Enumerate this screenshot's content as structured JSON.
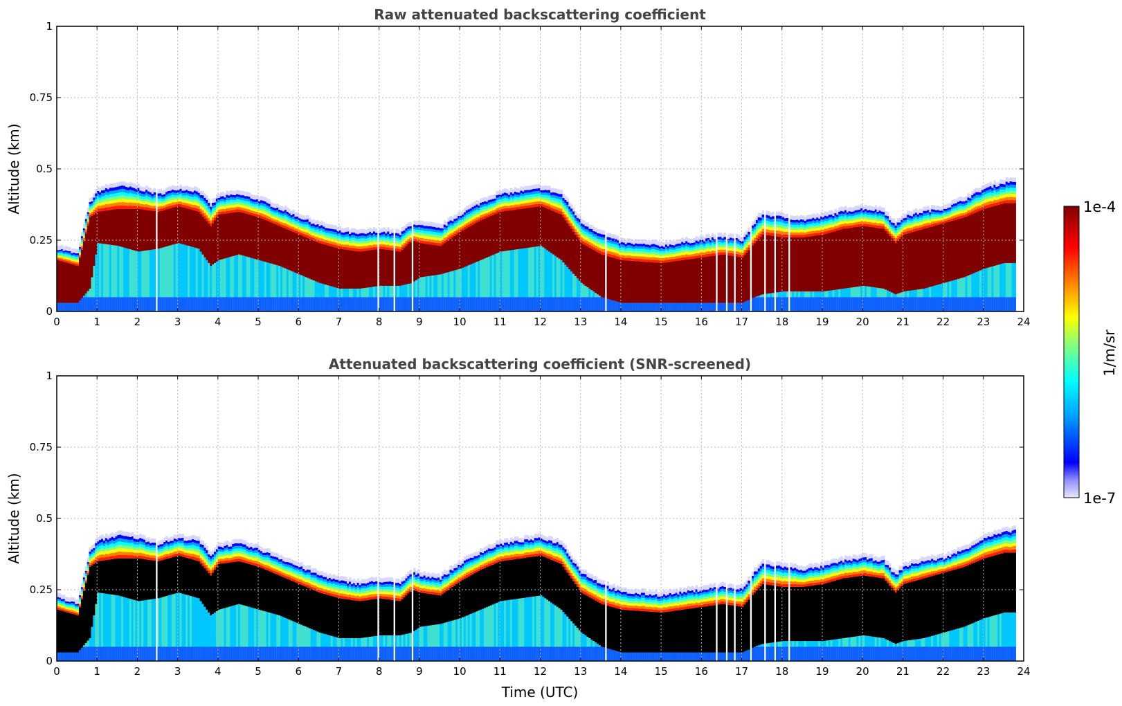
{
  "chart_data": [
    {
      "type": "heatmap",
      "title": "Raw attenuated backscattering coefficient",
      "xlabel": "",
      "ylabel": "Altitude (km)",
      "xlim": [
        0,
        24
      ],
      "ylim": [
        0,
        1
      ],
      "x_ticks": [
        "0",
        "1",
        "2",
        "3",
        "4",
        "5",
        "6",
        "7",
        "8",
        "9",
        "10",
        "11",
        "12",
        "13",
        "14",
        "15",
        "16",
        "17",
        "18",
        "19",
        "20",
        "21",
        "22",
        "23",
        "24"
      ],
      "y_ticks": [
        "0",
        "0.25",
        "0.5",
        "0.75",
        "1"
      ],
      "grid": true,
      "screened": false,
      "data_gaps_hours": [
        2.45,
        7.95,
        8.35,
        8.8,
        13.6,
        16.35,
        16.6,
        16.8,
        17.2,
        17.55,
        17.8,
        18.15
      ],
      "layer_profile": {
        "time_utc": [
          0.0,
          0.5,
          0.8,
          1.0,
          1.5,
          2.0,
          2.5,
          3.0,
          3.5,
          3.8,
          4.0,
          4.5,
          5.0,
          5.5,
          6.0,
          6.5,
          7.0,
          7.5,
          8.0,
          8.5,
          8.8,
          9.0,
          9.5,
          10.0,
          10.5,
          11.0,
          11.5,
          12.0,
          12.5,
          13.0,
          13.5,
          14.0,
          15.0,
          16.0,
          16.5,
          17.0,
          17.3,
          17.5,
          18.0,
          18.5,
          19.0,
          19.5,
          20.0,
          20.5,
          20.8,
          21.0,
          21.5,
          22.0,
          22.5,
          23.0,
          23.5,
          23.8
        ],
        "top_km": [
          0.22,
          0.2,
          0.38,
          0.42,
          0.44,
          0.43,
          0.41,
          0.43,
          0.42,
          0.37,
          0.4,
          0.41,
          0.39,
          0.36,
          0.33,
          0.3,
          0.28,
          0.27,
          0.28,
          0.27,
          0.31,
          0.3,
          0.29,
          0.34,
          0.38,
          0.41,
          0.42,
          0.43,
          0.41,
          0.31,
          0.27,
          0.24,
          0.23,
          0.25,
          0.26,
          0.25,
          0.31,
          0.34,
          0.33,
          0.32,
          0.33,
          0.35,
          0.36,
          0.35,
          0.3,
          0.33,
          0.35,
          0.36,
          0.39,
          0.43,
          0.45,
          0.46
        ],
        "core_top_km": [
          0.18,
          0.16,
          0.33,
          0.35,
          0.36,
          0.36,
          0.35,
          0.37,
          0.35,
          0.3,
          0.34,
          0.35,
          0.33,
          0.3,
          0.27,
          0.24,
          0.22,
          0.21,
          0.22,
          0.21,
          0.25,
          0.24,
          0.23,
          0.28,
          0.32,
          0.35,
          0.36,
          0.37,
          0.34,
          0.24,
          0.2,
          0.18,
          0.17,
          0.19,
          0.2,
          0.19,
          0.24,
          0.27,
          0.26,
          0.26,
          0.27,
          0.29,
          0.3,
          0.29,
          0.24,
          0.27,
          0.29,
          0.31,
          0.33,
          0.36,
          0.38,
          0.38
        ],
        "core_base_km": [
          0.03,
          0.03,
          0.08,
          0.24,
          0.23,
          0.21,
          0.22,
          0.24,
          0.22,
          0.16,
          0.18,
          0.2,
          0.18,
          0.16,
          0.13,
          0.1,
          0.08,
          0.08,
          0.09,
          0.09,
          0.1,
          0.12,
          0.13,
          0.15,
          0.18,
          0.21,
          0.22,
          0.23,
          0.18,
          0.1,
          0.05,
          0.03,
          0.03,
          0.03,
          0.03,
          0.03,
          0.05,
          0.06,
          0.07,
          0.07,
          0.07,
          0.08,
          0.09,
          0.08,
          0.06,
          0.07,
          0.08,
          0.1,
          0.12,
          0.15,
          0.17,
          0.17
        ]
      }
    },
    {
      "type": "heatmap",
      "title": "Attenuated backscattering coefficient (SNR-screened)",
      "xlabel": "Time (UTC)",
      "ylabel": "Altitude (km)",
      "xlim": [
        0,
        24
      ],
      "ylim": [
        0,
        1
      ],
      "x_ticks": [
        "0",
        "1",
        "2",
        "3",
        "4",
        "5",
        "6",
        "7",
        "8",
        "9",
        "10",
        "11",
        "12",
        "13",
        "14",
        "15",
        "16",
        "17",
        "18",
        "19",
        "20",
        "21",
        "22",
        "23",
        "24"
      ],
      "y_ticks": [
        "0",
        "0.25",
        "0.5",
        "0.75",
        "1"
      ],
      "grid": true,
      "screened": true,
      "screened_core_color": "#000000",
      "data_gaps_hours": [
        2.45,
        7.95,
        8.35,
        8.8,
        13.6,
        16.35,
        16.6,
        16.8,
        17.2,
        17.55,
        17.8,
        18.15
      ]
    }
  ],
  "colorbar": {
    "label": "1/m/sr",
    "max_label": "1e-4",
    "min_label": "1e-7",
    "colormap": [
      "#e8e8ff",
      "#0000ff",
      "#00a0ff",
      "#00ffff",
      "#80ff80",
      "#ffff00",
      "#ff8000",
      "#ff0000",
      "#800000"
    ]
  }
}
